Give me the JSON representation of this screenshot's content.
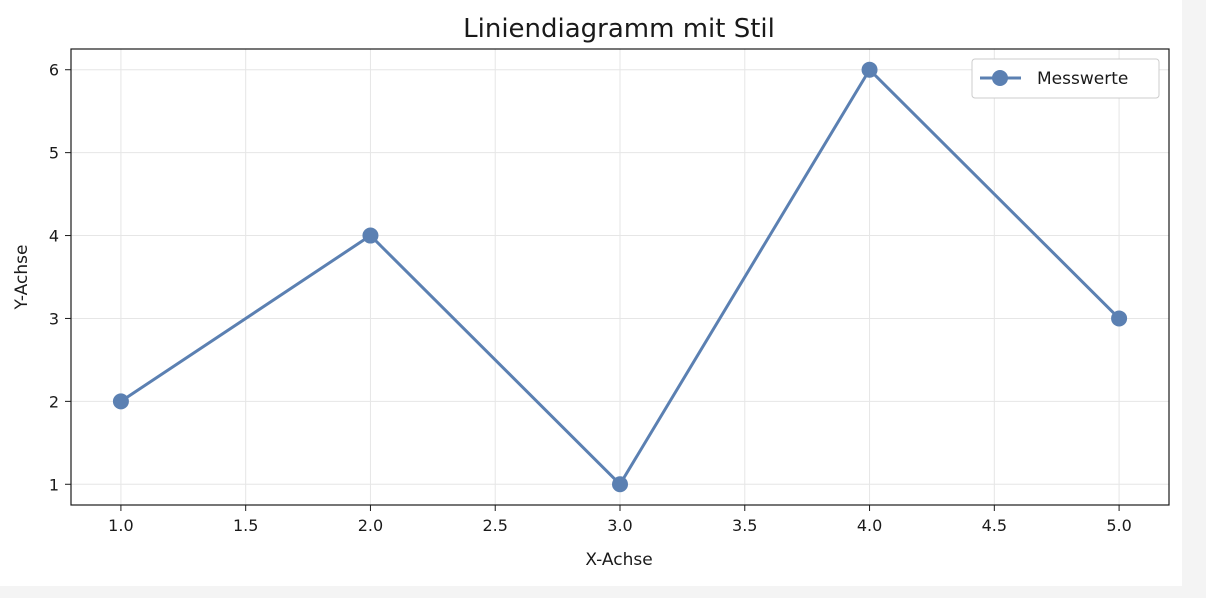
{
  "chart_data": {
    "type": "line",
    "title": "Liniendiagramm mit Stil",
    "xlabel": "X-Achse",
    "ylabel": "Y-Achse",
    "xlim": [
      0.8,
      5.2
    ],
    "ylim": [
      0.75,
      6.25
    ],
    "xticks": [
      "1.0",
      "1.5",
      "2.0",
      "2.5",
      "3.0",
      "3.5",
      "4.0",
      "4.5",
      "5.0"
    ],
    "yticks": [
      "1",
      "2",
      "3",
      "4",
      "5",
      "6"
    ],
    "grid": true,
    "legend_position": "top-right",
    "series": [
      {
        "name": "Messwerte",
        "x": [
          1,
          2,
          3,
          4,
          5
        ],
        "y": [
          2,
          4,
          1,
          6,
          3
        ],
        "color": "#5b80b2",
        "marker": "circle"
      }
    ]
  }
}
